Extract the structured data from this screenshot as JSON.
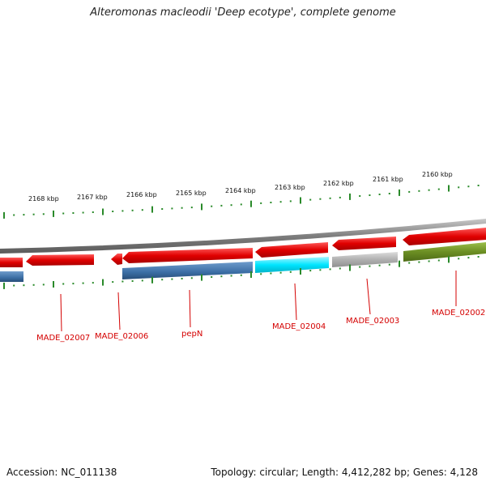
{
  "title": "Alteromonas macleodii 'Deep ecotype', complete genome",
  "footer": {
    "accession": "Accession: NC_011138",
    "summary": "Topology: circular; Length: 4,412,282 bp; Genes: 4,128"
  },
  "scale_labels": [
    "2168 kbp",
    "2167 kbp",
    "2166 kbp",
    "2165 kbp",
    "2164 kbp",
    "2163 kbp",
    "2162 kbp",
    "2161 kbp",
    "2160 kbp"
  ],
  "gene_labels": [
    "MADE_02007",
    "MADE_02006",
    "pepN",
    "MADE_02004",
    "MADE_02003",
    "MADE_02002"
  ],
  "colors": {
    "backbone": "#8a8a8a",
    "red_gene": "#e00000",
    "blue_gene": "#3b6ea5",
    "cyan_gene": "#00e5ff",
    "grey_gene": "#b0b0b0",
    "olive_gene": "#6b8e23",
    "ticks": "#2a8a2a",
    "label": "#d40000"
  }
}
